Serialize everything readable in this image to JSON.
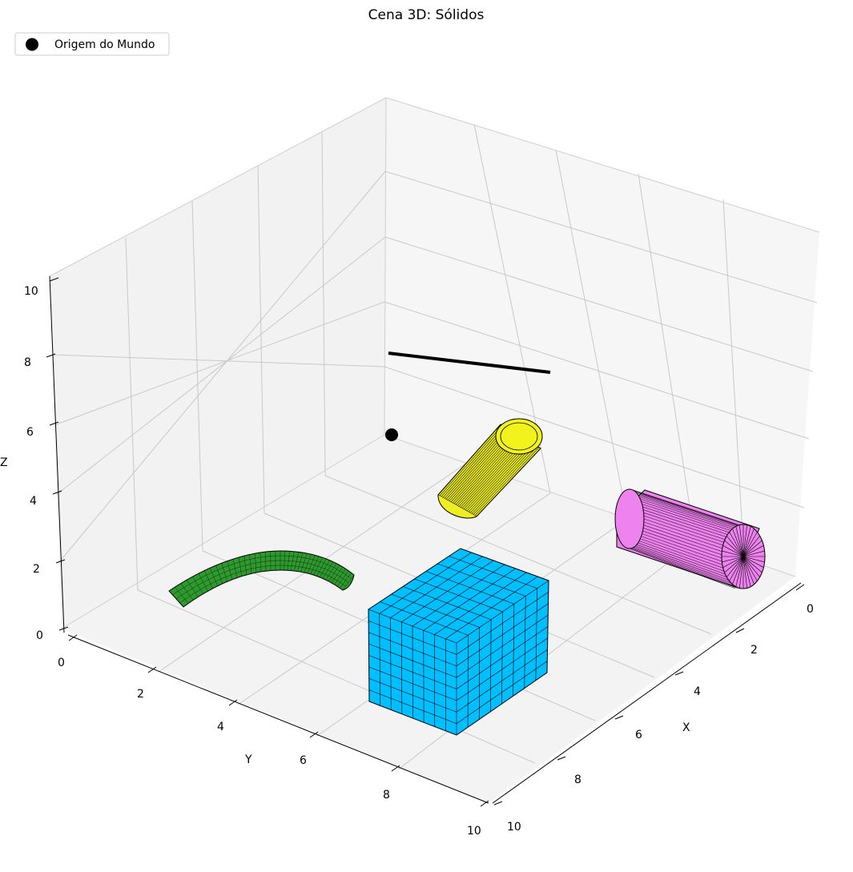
{
  "chart_data": {
    "type": "3d-scene",
    "title": "Cena 3D: Sólidos",
    "xlabel": "X",
    "ylabel": "Y",
    "zlabel": "Z",
    "xlim": [
      0,
      10
    ],
    "ylim": [
      0,
      10
    ],
    "zlim": [
      0,
      10
    ],
    "x_ticks": [
      "0",
      "2",
      "4",
      "6",
      "8",
      "10"
    ],
    "y_ticks": [
      "0",
      "2",
      "4",
      "6",
      "8",
      "10"
    ],
    "z_ticks": [
      "0",
      "2",
      "4",
      "6",
      "8",
      "10"
    ],
    "grid": true,
    "legend_position": "upper-left",
    "legend": [
      {
        "label": "Origem do Mundo",
        "marker": "circle",
        "color": "#000000"
      }
    ],
    "objects": [
      {
        "kind": "point",
        "label": "Origem do Mundo",
        "xyz": [
          0,
          0,
          5
        ],
        "color": "#000000"
      },
      {
        "kind": "line",
        "from": [
          0,
          0,
          8
        ],
        "to": [
          3,
          0,
          8
        ],
        "color": "#000000"
      },
      {
        "kind": "cylinder",
        "color": "#f2f21c",
        "center": [
          2.8,
          0.1,
          4
        ],
        "radius": 0.6,
        "axis": "x",
        "length": 3
      },
      {
        "kind": "cylinder",
        "color": "#ee82ee",
        "center": [
          5.5,
          0,
          2
        ],
        "radius": 1,
        "axis": "x",
        "length": 4
      },
      {
        "kind": "bent-tube",
        "color": "#2e9a2e"
      },
      {
        "kind": "cube",
        "color": "#00bfff",
        "min": [
          4.5,
          4.5,
          0
        ],
        "max": [
          9,
          9,
          2.8
        ]
      }
    ]
  }
}
